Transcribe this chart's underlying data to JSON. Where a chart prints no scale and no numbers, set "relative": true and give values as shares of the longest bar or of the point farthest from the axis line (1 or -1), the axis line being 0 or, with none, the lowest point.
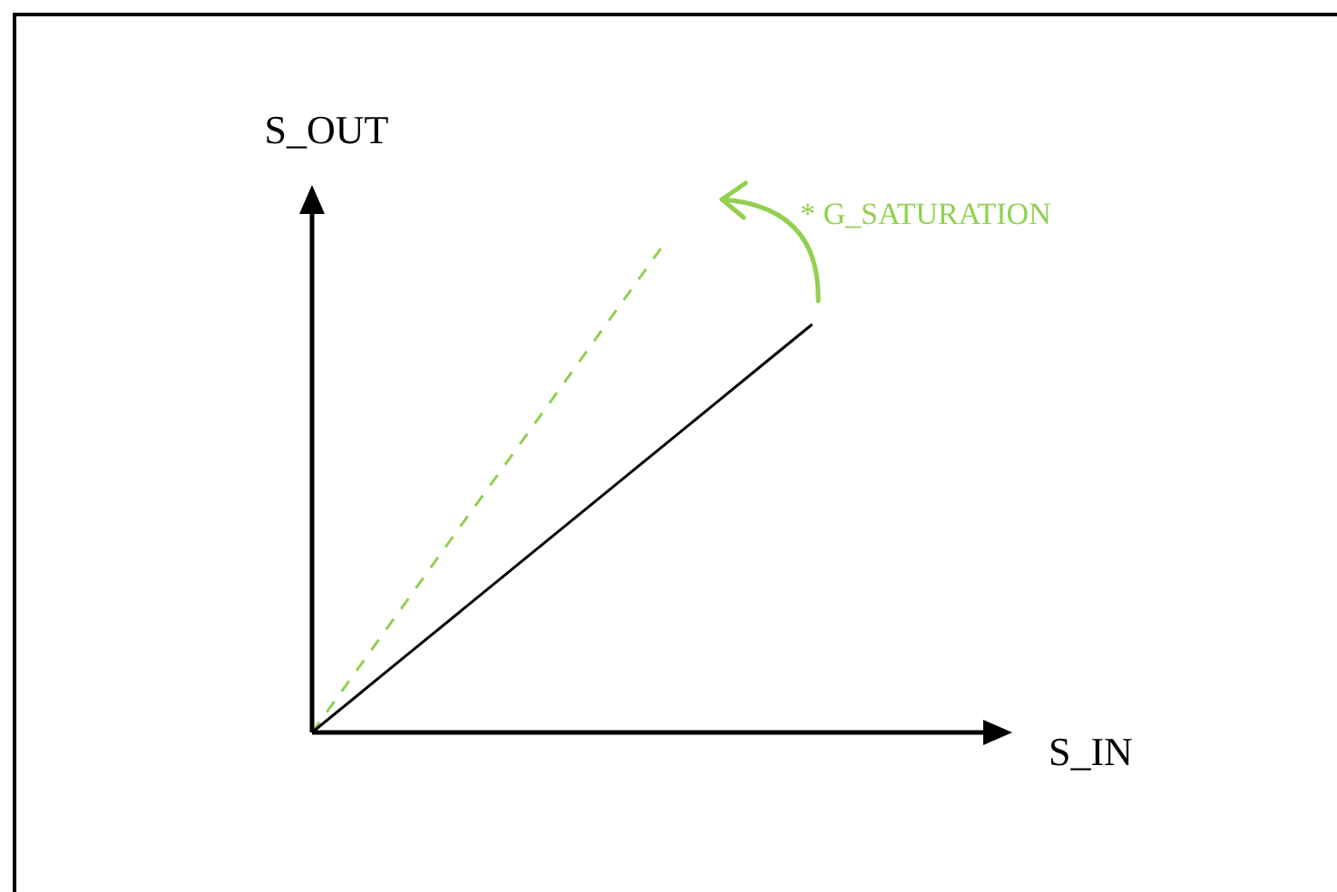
{
  "chart_data": {
    "type": "line",
    "relative": true,
    "xlabel": "S_IN",
    "ylabel": "S_OUT",
    "annotations": [
      "* G_SATURATION"
    ],
    "categories": [
      null,
      null,
      null,
      null,
      null,
      null,
      null,
      null,
      null,
      null,
      null,
      null,
      null,
      null,
      null
    ],
    "series": [
      {
        "color": "#000000",
        "values": [
          0,
          0.084,
          0.168,
          0.252,
          0.336,
          0.42,
          0.504,
          0.588,
          0.672,
          0.756,
          0.84,
          null,
          null,
          null,
          null
        ],
        "line_style": "solid"
      },
      {
        "color": "#92d050",
        "values": [
          0,
          0.143,
          0.286,
          0.429,
          0.571,
          0.714,
          0.857,
          1,
          null,
          null,
          null,
          null,
          null,
          null,
          null
        ],
        "line_style": "dashed"
      }
    ],
    "legend": false,
    "marker": "none"
  }
}
